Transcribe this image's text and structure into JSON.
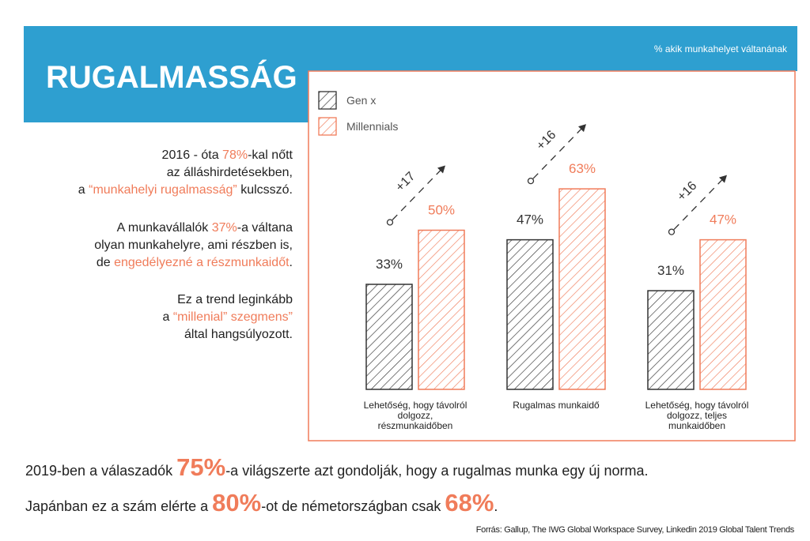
{
  "header": {
    "title": "RUGALMASSÁG"
  },
  "paragraphs": [
    [
      [
        "2016 - óta ",
        "78%",
        "-kal nőtt"
      ],
      [
        "az álláshirdetésekben,"
      ],
      [
        "a ",
        "“munkahelyi rugalmasság”",
        " kulcsszó."
      ]
    ],
    [
      [
        "A munkavállalók ",
        "37%",
        "-a váltana"
      ],
      [
        "olyan munkahelyre, ami részben is,"
      ],
      [
        "de ",
        "engedélyezné a részmunkaidőt",
        "."
      ]
    ],
    [
      [
        "Ez a trend leginkább"
      ],
      [
        "a ",
        "“millenial” szegmens”"
      ],
      [
        "által hangsúlyozott."
      ]
    ]
  ],
  "chart_data": {
    "type": "bar",
    "subtitle": "% akik munkahelyet váltanának",
    "categories": [
      "Lehetőség, hogy távolról dolgozz, részmunkaidőben",
      "Rugalmas munkaidő",
      "Lehetőség, hogy távolról dolgozz, teljes munkaidőben"
    ],
    "series": [
      {
        "name": "Gen x",
        "color": "#333333",
        "values": [
          33,
          47,
          31
        ],
        "value_labels": [
          "33%",
          "47%",
          "31%"
        ]
      },
      {
        "name": "Millennials",
        "color": "#f07c5a",
        "values": [
          50,
          63,
          47
        ],
        "value_labels": [
          "50%",
          "63%",
          "47%"
        ]
      }
    ],
    "annotations": [
      "+17",
      "+16",
      "+16"
    ]
  },
  "footer": {
    "lines": [
      [
        "2019-ben a válaszadók ",
        "75%",
        "-a világszerte azt gondolják, hogy a rugalmas munka egy új norma."
      ],
      [
        "Japánban ez a szám elérte a ",
        "80%",
        "-ot de németországban csak ",
        "68%",
        "."
      ]
    ],
    "source": "Forrás: Gallup, The IWG Global Workspace Survey, Linkedin 2019 Global Talent Trends"
  }
}
